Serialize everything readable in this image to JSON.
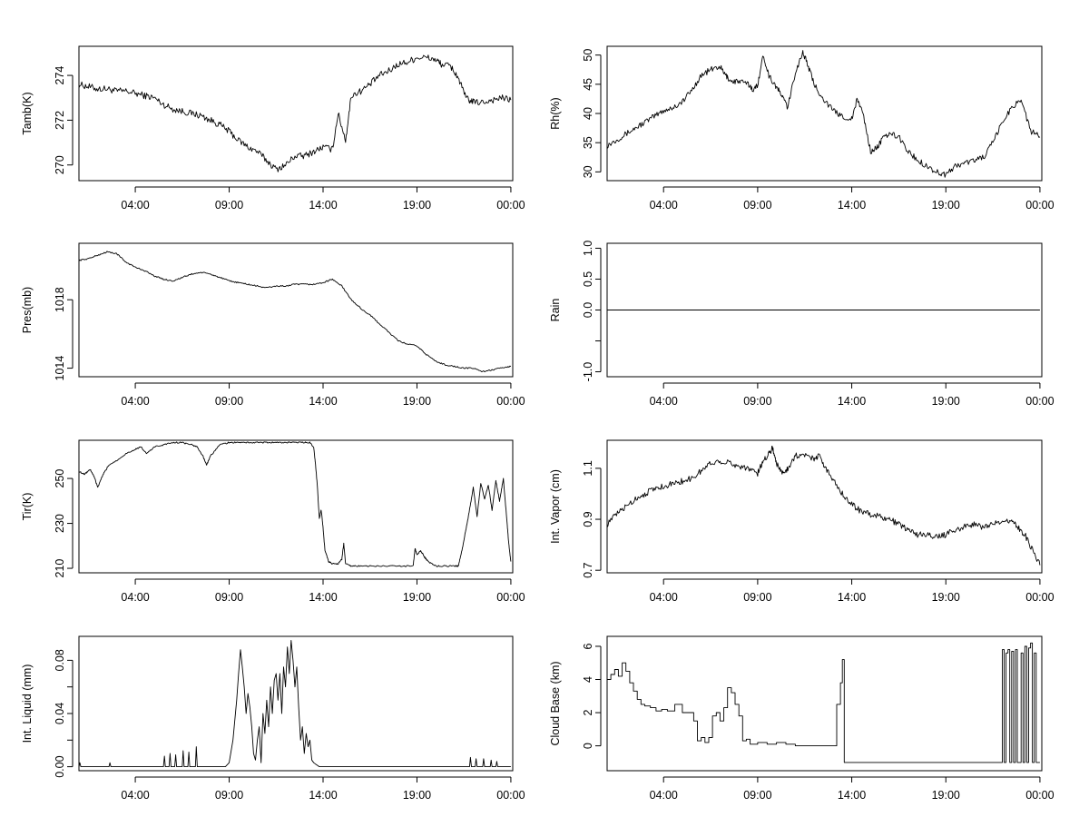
{
  "chart_data": [
    {
      "type": "line",
      "ylabel": "Tamb(K)",
      "xlabel": "",
      "xlim": [
        1,
        24.1
      ],
      "ylim": [
        269.3,
        275.3
      ],
      "yticks": [
        270,
        272,
        274
      ],
      "ytick_labels": [
        "270",
        "272",
        "274"
      ],
      "xticks": [
        4,
        9,
        14,
        19,
        24
      ],
      "xtick_labels": [
        "04:00",
        "09:00",
        "14:00",
        "19:00",
        "00:00"
      ],
      "noise": 0.15,
      "step": false,
      "x": [
        1.0,
        1.5,
        2.0,
        2.5,
        3.0,
        3.5,
        4.0,
        4.5,
        5.0,
        5.5,
        6.0,
        6.5,
        7.0,
        7.5,
        8.0,
        8.5,
        9.0,
        9.5,
        10.0,
        10.5,
        11.0,
        11.5,
        12.0,
        12.5,
        13.0,
        13.5,
        14.0,
        14.5,
        14.8,
        15.2,
        15.5,
        16.0,
        16.5,
        17.0,
        17.5,
        18.0,
        18.5,
        19.0,
        19.5,
        20.0,
        20.3,
        20.8,
        21.2,
        21.6,
        22.0,
        22.5,
        23.0,
        23.5,
        24.0
      ],
      "values": [
        273.6,
        273.5,
        273.4,
        273.4,
        273.3,
        273.3,
        273.2,
        273.1,
        273.0,
        272.7,
        272.5,
        272.4,
        272.3,
        272.2,
        272.0,
        271.8,
        271.5,
        271.1,
        270.8,
        270.6,
        270.2,
        269.8,
        270.0,
        270.4,
        270.4,
        270.6,
        270.8,
        270.7,
        272.3,
        271.1,
        273.1,
        273.3,
        273.6,
        274.0,
        274.2,
        274.5,
        274.6,
        274.8,
        274.8,
        274.7,
        274.5,
        274.4,
        273.9,
        273.0,
        272.8,
        272.8,
        272.9,
        273.0,
        272.9
      ]
    },
    {
      "type": "line",
      "ylabel": "Rh(%)",
      "xlabel": "",
      "xlim": [
        1,
        24.1
      ],
      "ylim": [
        28.5,
        51.5
      ],
      "yticks": [
        30,
        35,
        40,
        45,
        50
      ],
      "ytick_labels": [
        "30",
        "35",
        "40",
        "45",
        "50"
      ],
      "xticks": [
        4,
        9,
        14,
        19,
        24
      ],
      "xtick_labels": [
        "04:00",
        "09:00",
        "14:00",
        "19:00",
        "00:00"
      ],
      "noise": 0.5,
      "step": false,
      "x": [
        1.0,
        1.5,
        2.0,
        2.5,
        3.0,
        3.5,
        4.0,
        4.5,
        5.0,
        5.5,
        6.0,
        6.5,
        7.0,
        7.3,
        7.6,
        8.0,
        8.5,
        8.8,
        9.0,
        9.3,
        9.6,
        10.0,
        10.3,
        10.6,
        11.0,
        11.4,
        11.7,
        12.0,
        12.5,
        13.0,
        13.5,
        14.0,
        14.3,
        14.6,
        15.0,
        15.3,
        15.6,
        16.0,
        16.5,
        17.0,
        17.5,
        18.0,
        18.5,
        19.0,
        19.5,
        20.0,
        20.5,
        21.0,
        21.5,
        22.0,
        22.5,
        23.0,
        23.5,
        24.0
      ],
      "values": [
        34.5,
        35.5,
        36.5,
        37.5,
        38.5,
        39.5,
        40.5,
        41.0,
        42.0,
        44.0,
        46.5,
        47.5,
        48.0,
        46.5,
        45.5,
        45.5,
        45.0,
        44.0,
        45.0,
        50.0,
        46.5,
        44.5,
        43.0,
        41.0,
        47.0,
        50.5,
        48.0,
        45.0,
        42.5,
        40.5,
        39.5,
        39.0,
        42.5,
        40.0,
        33.5,
        34.0,
        35.5,
        36.5,
        36.0,
        33.5,
        32.0,
        31.0,
        30.0,
        29.5,
        31.0,
        31.5,
        32.0,
        32.5,
        35.0,
        38.5,
        41.0,
        42.5,
        37.0,
        36.0
      ]
    },
    {
      "type": "line",
      "ylabel": "Pres(mb)",
      "xlabel": "",
      "xlim": [
        1,
        24.1
      ],
      "ylim": [
        1013.5,
        1021.3
      ],
      "yticks": [
        1014,
        1018
      ],
      "ytick_labels": [
        "1014",
        "1018"
      ],
      "xticks": [
        4,
        9,
        14,
        19,
        24
      ],
      "xtick_labels": [
        "04:00",
        "09:00",
        "14:00",
        "19:00",
        "00:00"
      ],
      "noise": 0.04,
      "step": false,
      "x": [
        1.0,
        1.5,
        2.0,
        2.5,
        3.0,
        3.5,
        4.0,
        4.5,
        5.0,
        5.5,
        6.0,
        6.5,
        7.0,
        7.5,
        8.0,
        8.5,
        9.0,
        9.5,
        10.0,
        10.5,
        11.0,
        11.5,
        12.0,
        12.5,
        13.0,
        13.5,
        14.0,
        14.5,
        15.0,
        15.5,
        16.0,
        16.5,
        17.0,
        17.5,
        18.0,
        18.5,
        19.0,
        19.5,
        20.0,
        20.5,
        21.0,
        21.5,
        22.0,
        22.5,
        23.0,
        23.5,
        24.0
      ],
      "values": [
        1020.3,
        1020.4,
        1020.6,
        1020.8,
        1020.7,
        1020.2,
        1019.9,
        1019.7,
        1019.4,
        1019.2,
        1019.1,
        1019.3,
        1019.5,
        1019.6,
        1019.5,
        1019.3,
        1019.1,
        1019.0,
        1018.9,
        1018.8,
        1018.7,
        1018.8,
        1018.8,
        1018.9,
        1018.9,
        1018.9,
        1019.0,
        1019.2,
        1018.8,
        1018.0,
        1017.5,
        1017.1,
        1016.6,
        1016.1,
        1015.6,
        1015.4,
        1015.3,
        1014.8,
        1014.4,
        1014.2,
        1014.1,
        1014.0,
        1014.0,
        1013.8,
        1013.9,
        1014.0,
        1014.1
      ]
    },
    {
      "type": "line",
      "ylabel": "Rain",
      "xlabel": "",
      "xlim": [
        1,
        24.1
      ],
      "ylim": [
        -1.08,
        1.08
      ],
      "yticks": [
        -1.0,
        -0.5,
        0.0,
        0.5,
        1.0
      ],
      "ytick_labels": [
        "-1.0",
        "",
        "0.0",
        "0.5",
        "1.0"
      ],
      "xticks": [
        4,
        9,
        14,
        19,
        24
      ],
      "xtick_labels": [
        "04:00",
        "09:00",
        "14:00",
        "19:00",
        "00:00"
      ],
      "noise": 0,
      "step": false,
      "x": [
        1.0,
        24.0
      ],
      "values": [
        0.0,
        0.0
      ]
    },
    {
      "type": "line",
      "ylabel": "Tir(K)",
      "xlabel": "",
      "xlim": [
        1,
        24.1
      ],
      "ylim": [
        208,
        267
      ],
      "yticks": [
        210,
        230,
        250
      ],
      "ytick_labels": [
        "210",
        "230",
        "250"
      ],
      "xticks": [
        4,
        9,
        14,
        19,
        24
      ],
      "xtick_labels": [
        "04:00",
        "09:00",
        "14:00",
        "19:00",
        "00:00"
      ],
      "noise": 0.3,
      "step": false,
      "x": [
        1.0,
        1.3,
        1.6,
        1.8,
        2.0,
        2.3,
        2.6,
        3.0,
        3.5,
        4.0,
        4.3,
        4.6,
        5.0,
        5.5,
        6.0,
        6.5,
        7.0,
        7.3,
        7.6,
        7.8,
        8.0,
        8.5,
        9.0,
        9.5,
        10.0,
        10.5,
        11.0,
        11.5,
        12.0,
        12.5,
        13.0,
        13.3,
        13.5,
        13.6,
        13.7,
        13.8,
        13.9,
        14.0,
        14.1,
        14.3,
        14.5,
        14.8,
        15.0,
        15.1,
        15.2,
        15.5,
        16.0,
        17.0,
        18.0,
        18.8,
        18.9,
        19.0,
        19.2,
        19.4,
        19.6,
        20.0,
        20.5,
        21.0,
        21.2,
        21.4,
        21.6,
        21.8,
        22.0,
        22.2,
        22.4,
        22.6,
        22.8,
        23.0,
        23.2,
        23.4,
        23.6,
        23.8,
        23.9,
        24.0
      ],
      "values": [
        253,
        252,
        254,
        251,
        246,
        252,
        256,
        258,
        261,
        263,
        264,
        261,
        264,
        265,
        266,
        266,
        265,
        264,
        260,
        256,
        260,
        265,
        266,
        266,
        266,
        266,
        266,
        266,
        266,
        266,
        266,
        266,
        264,
        256,
        246,
        232,
        236,
        228,
        218,
        213,
        212,
        212,
        214,
        221,
        212,
        211,
        211,
        211,
        211,
        211,
        219,
        216,
        218,
        215,
        213,
        211,
        211,
        211,
        211,
        218,
        227,
        236,
        246,
        233,
        248,
        241,
        247,
        236,
        249,
        240,
        250,
        230,
        220,
        213
      ]
    },
    {
      "type": "line",
      "ylabel": "Int. Vapor (cm)",
      "xlabel": "",
      "xlim": [
        1,
        24.1
      ],
      "ylim": [
        0.69,
        1.21
      ],
      "yticks": [
        0.7,
        0.9,
        1.1
      ],
      "ytick_labels": [
        "0.7",
        "0.9",
        "1.1"
      ],
      "xticks": [
        4,
        9,
        14,
        19,
        24
      ],
      "xtick_labels": [
        "04:00",
        "09:00",
        "14:00",
        "19:00",
        "00:00"
      ],
      "noise": 0.012,
      "step": false,
      "x": [
        1.0,
        1.5,
        2.0,
        2.5,
        3.0,
        3.5,
        4.0,
        4.5,
        5.0,
        5.5,
        6.0,
        6.5,
        7.0,
        7.5,
        8.0,
        8.5,
        9.0,
        9.3,
        9.6,
        9.8,
        10.0,
        10.3,
        10.6,
        11.0,
        11.5,
        12.0,
        12.3,
        12.6,
        13.0,
        13.5,
        14.0,
        14.5,
        15.0,
        15.5,
        16.0,
        16.5,
        17.0,
        17.5,
        18.0,
        18.5,
        19.0,
        19.5,
        20.0,
        20.5,
        21.0,
        21.5,
        22.0,
        22.5,
        22.8,
        23.2,
        23.6,
        24.0
      ],
      "values": [
        0.88,
        0.92,
        0.95,
        0.98,
        1.0,
        1.02,
        1.03,
        1.04,
        1.05,
        1.06,
        1.09,
        1.12,
        1.13,
        1.12,
        1.11,
        1.1,
        1.08,
        1.13,
        1.16,
        1.18,
        1.12,
        1.08,
        1.1,
        1.15,
        1.15,
        1.14,
        1.15,
        1.1,
        1.06,
        1.0,
        0.96,
        0.93,
        0.92,
        0.91,
        0.9,
        0.88,
        0.86,
        0.84,
        0.84,
        0.83,
        0.84,
        0.86,
        0.87,
        0.88,
        0.87,
        0.88,
        0.89,
        0.9,
        0.87,
        0.84,
        0.78,
        0.72
      ]
    },
    {
      "type": "line",
      "ylabel": "Int. Liquid (mm)",
      "xlabel": "",
      "xlim": [
        1,
        24.1
      ],
      "ylim": [
        -0.003,
        0.098
      ],
      "yticks": [
        0.0,
        0.02,
        0.04,
        0.06,
        0.08
      ],
      "ytick_labels": [
        "0.00",
        "",
        "0.04",
        "",
        "0.08"
      ],
      "xticks": [
        4,
        9,
        14,
        19,
        24
      ],
      "xtick_labels": [
        "04:00",
        "09:00",
        "14:00",
        "19:00",
        "00:00"
      ],
      "noise": 0,
      "step": false,
      "x": [
        1.0,
        1.05,
        1.1,
        2.6,
        2.65,
        2.7,
        5.5,
        5.55,
        5.6,
        5.8,
        5.85,
        5.9,
        6.1,
        6.15,
        6.2,
        6.5,
        6.55,
        6.6,
        6.8,
        6.85,
        6.9,
        7.2,
        7.25,
        7.3,
        8.8,
        9.0,
        9.2,
        9.4,
        9.5,
        9.6,
        9.7,
        9.8,
        9.9,
        10.0,
        10.1,
        10.2,
        10.3,
        10.4,
        10.5,
        10.6,
        10.7,
        10.8,
        10.9,
        11.0,
        11.1,
        11.2,
        11.3,
        11.4,
        11.5,
        11.6,
        11.7,
        11.8,
        11.9,
        12.0,
        12.1,
        12.2,
        12.3,
        12.4,
        12.5,
        12.6,
        12.7,
        12.8,
        12.9,
        13.0,
        13.1,
        13.2,
        13.3,
        13.4,
        13.5,
        13.6,
        13.7,
        13.8,
        14.0,
        21.8,
        21.85,
        21.9,
        22.1,
        22.15,
        22.2,
        22.5,
        22.55,
        22.6,
        22.9,
        22.95,
        23.0,
        23.2,
        23.25,
        23.3,
        24.0
      ],
      "values": [
        0,
        0.003,
        0,
        0,
        0.003,
        0,
        0,
        0.008,
        0,
        0,
        0.01,
        0,
        0,
        0.009,
        0,
        0,
        0.012,
        0,
        0,
        0.011,
        0,
        0,
        0.015,
        0,
        0,
        0.003,
        0.02,
        0.05,
        0.07,
        0.088,
        0.075,
        0.06,
        0.04,
        0.055,
        0.045,
        0.03,
        0.01,
        0.005,
        0.02,
        0.03,
        0.003,
        0.04,
        0.025,
        0.05,
        0.03,
        0.06,
        0.04,
        0.065,
        0.07,
        0.05,
        0.07,
        0.04,
        0.075,
        0.06,
        0.09,
        0.07,
        0.095,
        0.08,
        0.06,
        0.075,
        0.045,
        0.02,
        0.03,
        0.01,
        0.025,
        0.015,
        0.02,
        0.005,
        0.003,
        0.002,
        0.001,
        0,
        0,
        0,
        0.007,
        0,
        0,
        0.006,
        0,
        0,
        0.006,
        0,
        0,
        0.005,
        0,
        0,
        0.004,
        0,
        0
      ]
    },
    {
      "type": "line",
      "ylabel": "Cloud Base (km)",
      "xlabel": "",
      "xlim": [
        1,
        24.1
      ],
      "ylim": [
        -1.5,
        6.6
      ],
      "yticks": [
        0,
        2,
        4,
        6
      ],
      "ytick_labels": [
        "0",
        "2",
        "4",
        "6"
      ],
      "xticks": [
        4,
        9,
        14,
        19,
        24
      ],
      "xtick_labels": [
        "04:00",
        "09:00",
        "14:00",
        "19:00",
        "00:00"
      ],
      "noise": 0,
      "step": true,
      "x": [
        1.0,
        1.2,
        1.4,
        1.6,
        1.8,
        2.0,
        2.2,
        2.4,
        2.6,
        2.8,
        3.0,
        3.3,
        3.6,
        3.9,
        4.2,
        4.6,
        5.0,
        5.3,
        5.6,
        5.8,
        6.0,
        6.2,
        6.4,
        6.6,
        6.8,
        7.0,
        7.2,
        7.4,
        7.6,
        7.8,
        8.0,
        8.2,
        8.4,
        8.6,
        9.0,
        9.5,
        10.0,
        10.5,
        11.0,
        11.5,
        12.0,
        12.5,
        13.0,
        13.2,
        13.4,
        13.5,
        13.6,
        13.65,
        13.7,
        14.5,
        15.0,
        16.0,
        17.0,
        18.0,
        19.0,
        20.0,
        21.0,
        21.8,
        22.0,
        22.1,
        22.2,
        22.3,
        22.4,
        22.5,
        22.6,
        22.7,
        22.8,
        22.9,
        23.0,
        23.1,
        23.2,
        23.3,
        23.4,
        23.5,
        23.6,
        23.7,
        23.8,
        23.9,
        24.0
      ],
      "values": [
        4.0,
        4.3,
        4.6,
        4.2,
        5.0,
        4.5,
        3.8,
        3.3,
        2.8,
        2.5,
        2.4,
        2.3,
        2.1,
        2.2,
        2.1,
        2.5,
        2.0,
        2.0,
        1.5,
        0.3,
        0.5,
        0.2,
        0.5,
        1.8,
        2.0,
        1.5,
        2.3,
        3.5,
        3.2,
        2.5,
        1.8,
        0.3,
        0.4,
        0.1,
        0.2,
        0.1,
        0.2,
        0.1,
        0.0,
        0.0,
        0.0,
        0.0,
        0.0,
        2.5,
        3.8,
        5.2,
        -1.0,
        -1.0,
        -1.0,
        -1.0,
        -1.0,
        -1.0,
        -1.0,
        -1.0,
        -1.0,
        -1.0,
        -1.0,
        -1.0,
        5.8,
        -1.0,
        5.6,
        5.8,
        -1.0,
        5.7,
        -1.0,
        5.8,
        -1.0,
        -1.0,
        5.6,
        -1.0,
        6.0,
        -1.0,
        5.9,
        6.2,
        -1.0,
        5.6,
        -1.0,
        -1.0,
        -1.0
      ]
    }
  ]
}
